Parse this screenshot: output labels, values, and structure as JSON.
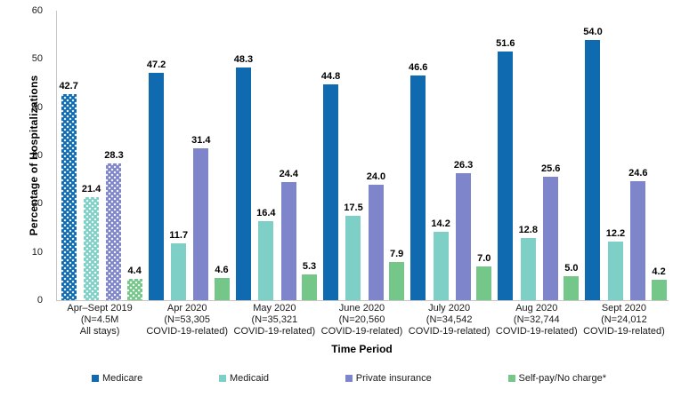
{
  "chart_data": {
    "type": "bar",
    "title": "",
    "ylabel": "Percentage of Hospitalizations",
    "xlabel": "Time Period",
    "ylim": [
      0,
      60
    ],
    "yticks": [
      0,
      10,
      20,
      30,
      40,
      50,
      60
    ],
    "grid": false,
    "legend_position": "bottom",
    "patterned_group_index": 0,
    "pattern_note": "first category drawn with white polka-dot fill",
    "categories": [
      [
        "Apr–Sept 2019",
        "(N=4.5M",
        "All stays)"
      ],
      [
        "Apr 2020",
        "(N=53,305",
        "COVID-19-related)"
      ],
      [
        "May 2020",
        "(N=35,321",
        "COVID-19-related)"
      ],
      [
        "June 2020",
        "(N=20,560",
        "COVID-19-related)"
      ],
      [
        "July 2020",
        "(N=34,542",
        "COVID-19-related)"
      ],
      [
        "Aug 2020",
        "(N=32,744",
        "COVID-19-related)"
      ],
      [
        "Sept 2020",
        "(N=24,012",
        "COVID-19-related)"
      ]
    ],
    "series": [
      {
        "name": "Medicare",
        "color": "#0f6ab0",
        "values": [
          42.7,
          47.2,
          48.3,
          44.8,
          46.6,
          51.6,
          54.0
        ]
      },
      {
        "name": "Medicaid",
        "color": "#7ecfc6",
        "values": [
          21.4,
          11.7,
          16.4,
          17.5,
          14.2,
          12.8,
          12.2
        ]
      },
      {
        "name": "Private insurance",
        "color": "#7e85ca",
        "values": [
          28.3,
          31.4,
          24.4,
          24.0,
          26.3,
          25.6,
          24.6
        ]
      },
      {
        "name": "Self-pay/No charge*",
        "color": "#74c689",
        "values": [
          4.4,
          4.6,
          5.3,
          7.9,
          7.0,
          5.0,
          4.2
        ]
      }
    ],
    "colors": {
      "axis_line": "#c6c6c6",
      "label_text": "#000000",
      "background": "#ffffff"
    }
  }
}
